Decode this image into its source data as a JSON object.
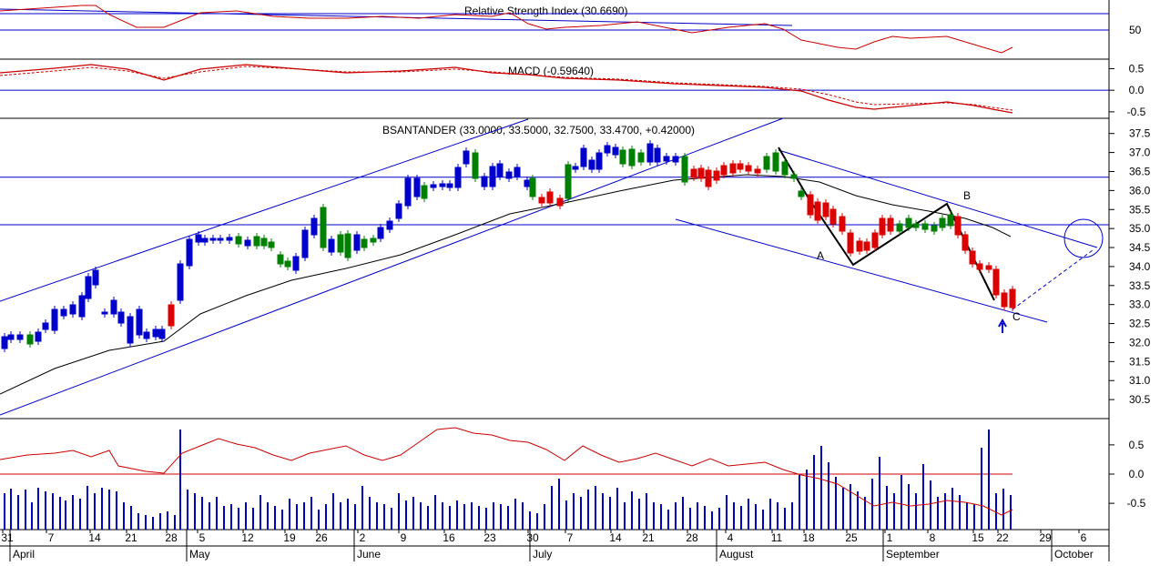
{
  "chart_data": [
    {
      "type": "line",
      "panel": "rsi",
      "title": "Relative Strength Index (30.6690)",
      "y_ticks": [
        "50"
      ],
      "reference_values": [
        50,
        70
      ],
      "colors": {
        "line": "#cc0000",
        "ref": "#0000cc"
      }
    },
    {
      "type": "line",
      "panel": "macd",
      "title": "MACD (-0.59640)",
      "y_ticks": [
        "0.5",
        "0.0",
        "-0.5"
      ],
      "ylim": [
        -0.65,
        0.72
      ],
      "colors": {
        "line": "#cc0000",
        "signal": "#cc0000",
        "ref": "#0000cc"
      }
    },
    {
      "type": "candlestick",
      "panel": "price",
      "title": "BSANTANDER (33.0000, 33.5000, 32.7500, 33.4700, +0.42000)",
      "y_ticks": [
        "37.5",
        "37.0",
        "36.5",
        "36.0",
        "35.5",
        "35.0",
        "34.5",
        "34.0",
        "33.5",
        "33.0",
        "32.5",
        "32.0",
        "31.5",
        "31.0",
        "30.5"
      ],
      "ylim": [
        30.0,
        37.9
      ],
      "horizontal_levels": [
        36.35,
        35.1
      ],
      "annotations": [
        "A",
        "B",
        "C"
      ],
      "colors": {
        "up": "#008000",
        "down": "#0000cc",
        "down_red": "#dd0000",
        "trend": "#0000cc",
        "ma": "#000000",
        "wave": "#000000"
      }
    },
    {
      "type": "bar",
      "panel": "volume",
      "y_ticks": [
        "0.5",
        "0.0",
        "-0.5"
      ],
      "ylim": [
        -0.95,
        0.95
      ],
      "colors": {
        "bars": "#0000cc",
        "oscillator": "#cc0000",
        "ref": "#cc0000"
      }
    }
  ],
  "x_axis": {
    "day_labels": [
      "31",
      "7",
      "14",
      "21",
      "28",
      "5",
      "12",
      "19",
      "26",
      "2",
      "9",
      "16",
      "23",
      "30",
      "7",
      "14",
      "21",
      "28",
      "4",
      "11",
      "18",
      "25",
      "1",
      "8",
      "15",
      "22",
      "29",
      "6"
    ],
    "month_labels": [
      "April",
      "May",
      "June",
      "July",
      "August",
      "September",
      "October"
    ]
  }
}
